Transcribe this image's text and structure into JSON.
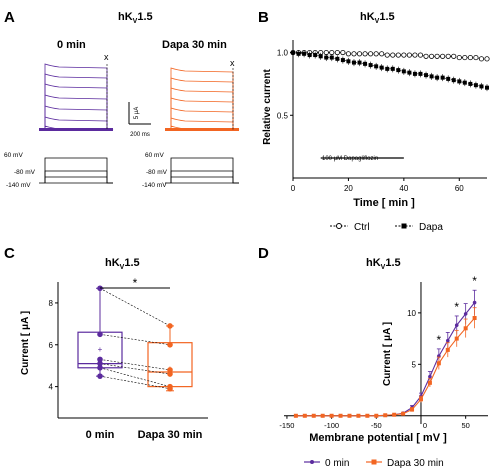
{
  "colors": {
    "purple": "#5b2b9e",
    "orange": "#f26522",
    "black": "#000000",
    "gray": "#888888"
  },
  "panelA": {
    "letter": "A",
    "title": "hK",
    "title_sub": "V",
    "title_post": "1.5",
    "label_left": "0 min",
    "label_right": "Dapa 30 min",
    "marker": "x",
    "scale_y": "5 μA",
    "scale_x": "200 ms",
    "protocol_labels": [
      "60 mV",
      "-80 mV",
      "-140 mV"
    ]
  },
  "chart_data": [
    {
      "panel": "B",
      "type": "scatter",
      "title": "hKV1.5",
      "xlabel": "Time [ min ]",
      "ylabel": "Relative current",
      "xlim": [
        0,
        70
      ],
      "ylim": [
        0.0,
        1.1
      ],
      "xticks": [
        "0",
        "20",
        "40",
        "60"
      ],
      "yticks": [
        "0.5",
        "1.0"
      ],
      "annotation": "100 μM Dapagliflozin",
      "annotation_range": [
        10,
        40
      ],
      "series": [
        {
          "name": "Ctrl",
          "marker": "open-circle",
          "x": [
            0,
            2,
            4,
            6,
            8,
            10,
            12,
            14,
            16,
            18,
            20,
            22,
            24,
            26,
            28,
            30,
            32,
            34,
            36,
            38,
            40,
            42,
            44,
            46,
            48,
            50,
            52,
            54,
            56,
            58,
            60,
            62,
            64,
            66,
            68,
            70
          ],
          "y": [
            1.0,
            1.0,
            1.0,
            1.0,
            1.0,
            1.0,
            1.0,
            1.0,
            1.0,
            1.0,
            0.99,
            0.99,
            0.99,
            0.99,
            0.99,
            0.99,
            0.99,
            0.98,
            0.98,
            0.98,
            0.98,
            0.98,
            0.98,
            0.98,
            0.97,
            0.97,
            0.97,
            0.97,
            0.97,
            0.97,
            0.96,
            0.96,
            0.96,
            0.96,
            0.95,
            0.95
          ]
        },
        {
          "name": "Dapa",
          "marker": "filled-square",
          "x": [
            0,
            2,
            4,
            6,
            8,
            10,
            12,
            14,
            16,
            18,
            20,
            22,
            24,
            26,
            28,
            30,
            32,
            34,
            36,
            38,
            40,
            42,
            44,
            46,
            48,
            50,
            52,
            54,
            56,
            58,
            60,
            62,
            64,
            66,
            68,
            70
          ],
          "y": [
            1.0,
            0.99,
            0.99,
            0.98,
            0.98,
            0.97,
            0.96,
            0.96,
            0.95,
            0.94,
            0.93,
            0.92,
            0.92,
            0.91,
            0.9,
            0.89,
            0.88,
            0.87,
            0.87,
            0.86,
            0.85,
            0.84,
            0.83,
            0.83,
            0.82,
            0.81,
            0.8,
            0.8,
            0.79,
            0.78,
            0.77,
            0.76,
            0.75,
            0.74,
            0.73,
            0.72
          ]
        }
      ],
      "legend": [
        "Ctrl",
        "Dapa"
      ]
    },
    {
      "panel": "C",
      "type": "box",
      "title": "hKV1.5",
      "ylabel": "Current [ μA ]",
      "ylim": [
        2.5,
        9
      ],
      "yticks": [
        "4",
        "6",
        "8"
      ],
      "categories": [
        "0 min",
        "Dapa 30 min"
      ],
      "significance": "*",
      "boxes": [
        {
          "name": "0 min",
          "min": 4.5,
          "q1": 4.9,
          "median": 5.1,
          "q3": 6.6,
          "max": 8.7,
          "mean": 5.8
        },
        {
          "name": "Dapa 30 min",
          "min": 3.8,
          "q1": 4.0,
          "median": 4.7,
          "q3": 6.1,
          "max": 6.9,
          "mean": 4.9
        }
      ],
      "points": {
        "0 min": [
          8.7,
          6.5,
          5.3,
          5.1,
          4.9,
          4.5
        ],
        "Dapa 30 min": [
          6.9,
          6.0,
          4.8,
          4.6,
          4.0,
          3.9
        ]
      }
    },
    {
      "panel": "D",
      "type": "line",
      "title": "hKV1.5",
      "xlabel": "Membrane potential [ mV ]",
      "ylabel": "Current [ μA ]",
      "xlim": [
        -160,
        75
      ],
      "ylim": [
        -0.8,
        13
      ],
      "xticks": [
        "-150",
        "-100",
        "-50",
        "0",
        "50"
      ],
      "yticks": [
        "5",
        "10"
      ],
      "series": [
        {
          "name": "0 min",
          "x": [
            -140,
            -130,
            -120,
            -110,
            -100,
            -90,
            -80,
            -70,
            -60,
            -50,
            -40,
            -30,
            -20,
            -10,
            0,
            10,
            20,
            30,
            40,
            50,
            60
          ],
          "y": [
            0,
            0,
            0,
            0,
            0,
            0,
            0,
            0,
            0,
            0,
            0.05,
            0.1,
            0.25,
            0.8,
            1.9,
            3.8,
            5.8,
            7.3,
            8.8,
            9.9,
            11.0
          ],
          "err": [
            0,
            0,
            0,
            0,
            0,
            0,
            0,
            0,
            0,
            0,
            0.05,
            0.05,
            0.1,
            0.2,
            0.3,
            0.5,
            0.7,
            0.8,
            0.9,
            1.0,
            1.2
          ]
        },
        {
          "name": "Dapa 30 min",
          "x": [
            -140,
            -130,
            -120,
            -110,
            -100,
            -90,
            -80,
            -70,
            -60,
            -50,
            -40,
            -30,
            -20,
            -10,
            0,
            10,
            20,
            30,
            40,
            50,
            60
          ],
          "y": [
            0,
            0,
            0,
            0,
            0,
            0,
            0,
            0,
            0,
            0,
            0.05,
            0.1,
            0.2,
            0.6,
            1.6,
            3.2,
            5.1,
            6.4,
            7.5,
            8.5,
            9.5
          ],
          "err": [
            0,
            0,
            0,
            0,
            0,
            0,
            0,
            0,
            0,
            0,
            0.05,
            0.05,
            0.1,
            0.2,
            0.3,
            0.4,
            0.6,
            0.7,
            0.8,
            0.9,
            1.0
          ]
        }
      ],
      "significance": [
        {
          "x": 20,
          "label": "*"
        },
        {
          "x": 40,
          "label": "*"
        },
        {
          "x": 60,
          "label": "*"
        }
      ],
      "legend": [
        "0 min",
        "Dapa 30 min"
      ]
    }
  ]
}
